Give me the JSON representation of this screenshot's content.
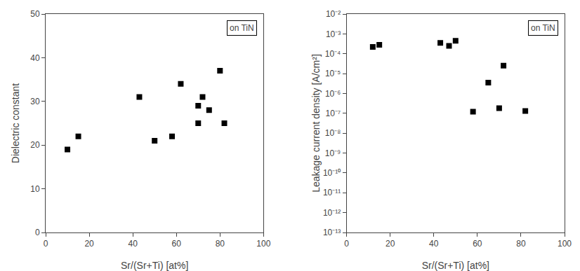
{
  "chart_data": [
    {
      "type": "scatter",
      "x": [
        10,
        15,
        43,
        50,
        58,
        62,
        70,
        70,
        72,
        75,
        80,
        82
      ],
      "values": [
        19,
        22,
        31,
        21,
        22,
        34,
        25,
        29,
        31,
        28,
        37,
        25
      ],
      "xlabel": "Sr/(Sr+Ti) [at%]",
      "ylabel": "Dielectric constant",
      "xlim": [
        0,
        100
      ],
      "ylim": [
        0,
        50
      ],
      "xticks": [
        0,
        20,
        40,
        60,
        80,
        100
      ],
      "yticks": [
        0,
        10,
        20,
        30,
        40,
        50
      ],
      "annotations": [
        "on TiN"
      ],
      "color": "black",
      "marker": "square",
      "grid": false
    },
    {
      "type": "scatter",
      "x": [
        12,
        15,
        43,
        47,
        50,
        58,
        65,
        70,
        72,
        82
      ],
      "values": [
        0.00022,
        0.00028,
        0.00035,
        0.00025,
        0.00045,
        1.2e-07,
        3.5e-06,
        1.8e-07,
        2.5e-05,
        1.3e-07
      ],
      "xlabel": "Sr/(Sr+Ti) [at%]",
      "ylabel": "Leakage current density [A/cm²]",
      "xlim": [
        0,
        100
      ],
      "ylim": [
        1e-13,
        0.01
      ],
      "xticks": [
        0,
        20,
        40,
        60,
        80,
        100
      ],
      "yticks": [
        {
          "value": 1e-13,
          "label": "10⁻¹³"
        },
        {
          "value": 1e-12,
          "label": "10⁻¹²"
        },
        {
          "value": 1e-11,
          "label": "10⁻¹¹"
        },
        {
          "value": 1e-10,
          "label": "10⁻¹⁰"
        },
        {
          "value": 1e-09,
          "label": "10⁻⁹"
        },
        {
          "value": 1e-08,
          "label": "10⁻⁸"
        },
        {
          "value": 1e-07,
          "label": "10⁻⁷"
        },
        {
          "value": 1e-06,
          "label": "10⁻⁶"
        },
        {
          "value": 1e-05,
          "label": "10⁻⁵"
        },
        {
          "value": 0.0001,
          "label": "10⁻⁴"
        },
        {
          "value": 0.001,
          "label": "10⁻³"
        },
        {
          "value": 0.01,
          "label": "10⁻²"
        }
      ],
      "log": "y",
      "annotations": [
        "on TiN"
      ],
      "color": "black",
      "marker": "square",
      "grid": false
    }
  ]
}
